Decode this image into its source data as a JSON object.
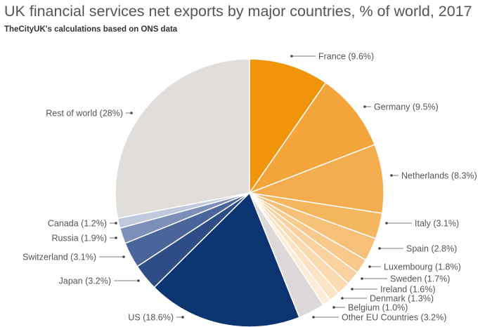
{
  "chart_data": {
    "type": "pie",
    "title": "UK financial services net exports by major countries, % of world, 2017",
    "subtitle": "TheCityUK's calculations based on ONS data",
    "start": "top",
    "direction": "clockwise",
    "legend": "callout labels",
    "slices": [
      {
        "name": "France",
        "value": 9.6,
        "label": "France (9.6%)",
        "color": "#f0940a"
      },
      {
        "name": "Germany",
        "value": 9.5,
        "label": "Germany (9.5%)",
        "color": "#f3a43a"
      },
      {
        "name": "Netherlands",
        "value": 8.3,
        "label": "Netherlands (8.3%)",
        "color": "#f4ad4e"
      },
      {
        "name": "Italy",
        "value": 3.1,
        "label": "Italy (3.1%)",
        "color": "#f5b660"
      },
      {
        "name": "Spain",
        "value": 2.8,
        "label": "Spain (2.8%)",
        "color": "#f7c078"
      },
      {
        "name": "Luxembourg",
        "value": 1.8,
        "label": "Luxembourg (1.8%)",
        "color": "#f8c98a"
      },
      {
        "name": "Sweden",
        "value": 1.7,
        "label": "Sweden (1.7%)",
        "color": "#f9d29f"
      },
      {
        "name": "Ireland",
        "value": 1.6,
        "label": "Ireland (1.6%)",
        "color": "#fadab0"
      },
      {
        "name": "Denmark",
        "value": 1.3,
        "label": "Denmark (1.3%)",
        "color": "#fbe3c4"
      },
      {
        "name": "Belgium",
        "value": 1.0,
        "label": "Belgium (1.0%)",
        "color": "#fcecd8"
      },
      {
        "name": "Other EU Countries",
        "value": 3.2,
        "label": "Other EU Countries (3.2%)",
        "color": "#dcd9d8"
      },
      {
        "name": "US",
        "value": 18.6,
        "label": "US (18.6%)",
        "color": "#0b3570"
      },
      {
        "name": "Japan",
        "value": 3.2,
        "label": "Japan (3.2%)",
        "color": "#2e4d86"
      },
      {
        "name": "Switzerland",
        "value": 3.1,
        "label": "Switzerland (3.1%)",
        "color": "#4a6599"
      },
      {
        "name": "Russia",
        "value": 1.9,
        "label": "Russia (1.9%)",
        "color": "#7c8fb8"
      },
      {
        "name": "Canada",
        "value": 1.2,
        "label": "Canada (1.2%)",
        "color": "#c0c8de"
      },
      {
        "name": "Rest of world",
        "value": 28,
        "label": "Rest of world (28%)",
        "color": "#e0dddb"
      }
    ]
  }
}
